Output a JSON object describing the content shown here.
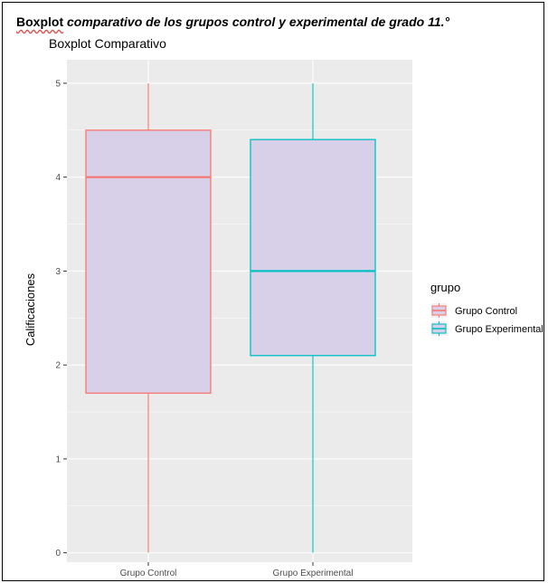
{
  "caption": {
    "lead": "Boxplot",
    "rest": " comparativo de los grupos control y experimental de grado 11.°"
  },
  "colors": {
    "control": "#F8766D",
    "experimental": "#00BFC4",
    "box_fill": "#D7D0E8",
    "panel_bg": "#EBEBEB",
    "grid": "#FFFFFF"
  },
  "chart_data": {
    "type": "box",
    "title": "Boxplot Comparativo",
    "xlabel": "",
    "ylabel": "Calificaciones",
    "ylim": [
      -0.1,
      5.25
    ],
    "yticks": [
      0,
      1,
      2,
      3,
      4,
      5
    ],
    "categories": [
      "Grupo Control",
      "Grupo Experimental"
    ],
    "series": [
      {
        "name": "Grupo Control",
        "min": 0,
        "q1": 1.7,
        "median": 4.0,
        "q3": 4.5,
        "max": 5
      },
      {
        "name": "Grupo Experimental",
        "min": 0,
        "q1": 2.1,
        "median": 3.0,
        "q3": 4.4,
        "max": 5
      }
    ],
    "legend": {
      "title": "grupo",
      "position": "right",
      "entries": [
        "Grupo Control",
        "Grupo Experimental"
      ]
    },
    "grid": true
  }
}
